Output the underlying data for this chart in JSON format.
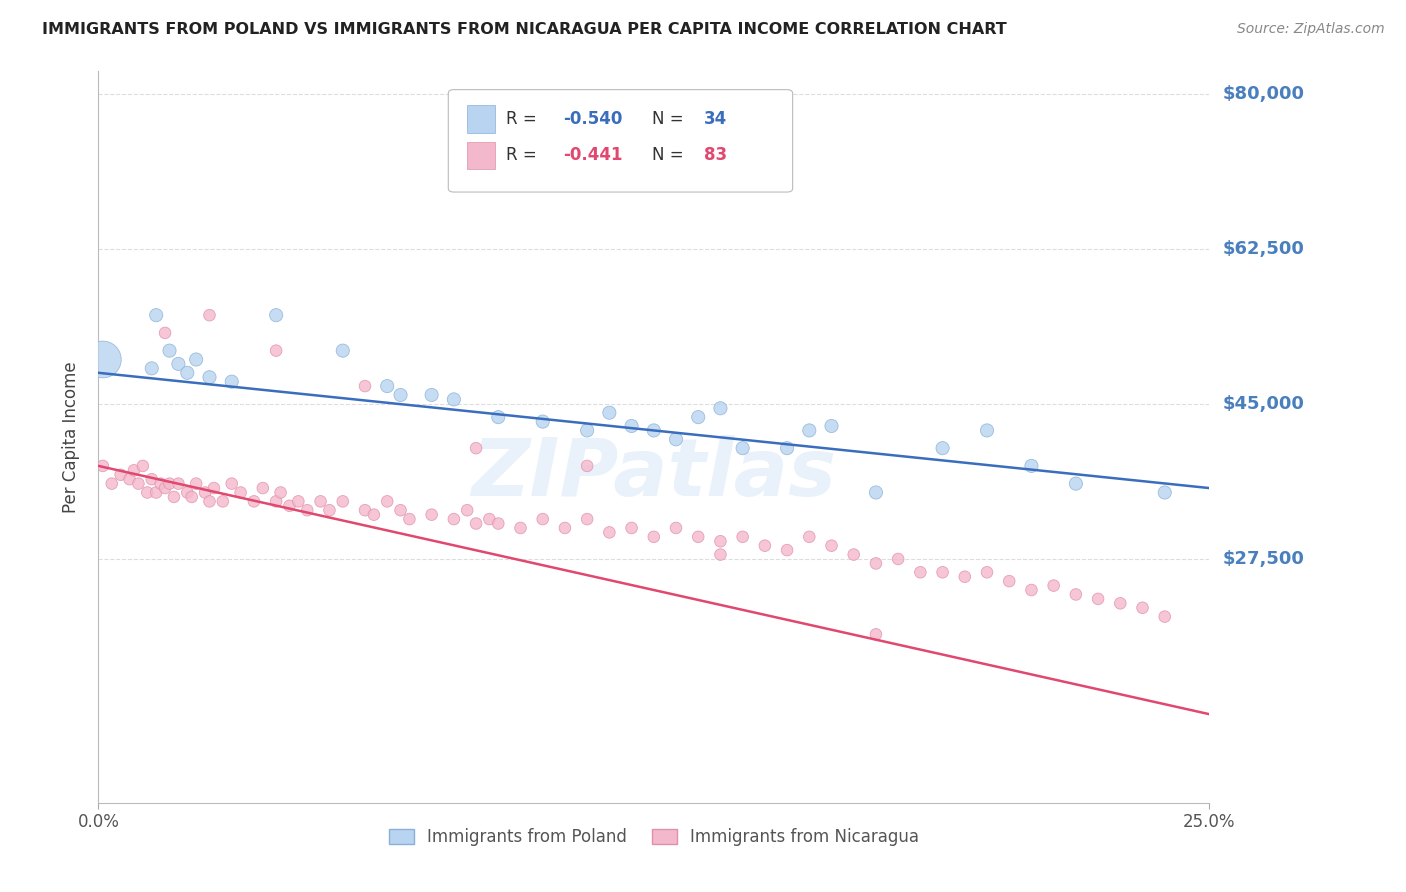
{
  "title": "IMMIGRANTS FROM POLAND VS IMMIGRANTS FROM NICARAGUA PER CAPITA INCOME CORRELATION CHART",
  "source": "Source: ZipAtlas.com",
  "ylabel": "Per Capita Income",
  "ytick_labels": [
    "$80,000",
    "$62,500",
    "$45,000",
    "$27,500"
  ],
  "ytick_values": [
    80000,
    62500,
    45000,
    27500
  ],
  "ymin": 0,
  "ymax": 82500,
  "xmin": 0.0,
  "xmax": 0.25,
  "poland_color": "#b8d4f0",
  "poland_edge": "#8ab0d8",
  "nicaragua_color": "#f4b8cc",
  "nicaragua_edge": "#e090a8",
  "poland_line_color": "#3a6ebd",
  "nicaragua_line_color": "#e04870",
  "background_color": "#ffffff",
  "grid_color": "#dddddd",
  "title_color": "#222222",
  "ytick_color": "#4a7fbd",
  "watermark": "ZIPatlas",
  "poland_R": -0.54,
  "poland_N": 34,
  "nicaragua_R": -0.441,
  "nicaragua_N": 83,
  "poland_scatter_x": [
    0.001,
    0.012,
    0.013,
    0.016,
    0.018,
    0.02,
    0.022,
    0.025,
    0.03,
    0.04,
    0.055,
    0.065,
    0.068,
    0.075,
    0.08,
    0.09,
    0.1,
    0.11,
    0.115,
    0.12,
    0.125,
    0.13,
    0.135,
    0.14,
    0.145,
    0.155,
    0.16,
    0.165,
    0.175,
    0.19,
    0.2,
    0.21,
    0.22,
    0.24
  ],
  "poland_scatter_y": [
    50000,
    49000,
    55000,
    51000,
    49500,
    48500,
    50000,
    48000,
    47500,
    55000,
    51000,
    47000,
    46000,
    46000,
    45500,
    43500,
    43000,
    42000,
    44000,
    42500,
    42000,
    41000,
    43500,
    44500,
    40000,
    40000,
    42000,
    42500,
    35000,
    40000,
    42000,
    38000,
    36000,
    35000
  ],
  "poland_big_idx": 0,
  "nicaragua_scatter_x": [
    0.001,
    0.003,
    0.005,
    0.007,
    0.008,
    0.009,
    0.01,
    0.011,
    0.012,
    0.013,
    0.014,
    0.015,
    0.016,
    0.017,
    0.018,
    0.02,
    0.021,
    0.022,
    0.024,
    0.025,
    0.026,
    0.028,
    0.03,
    0.032,
    0.035,
    0.037,
    0.04,
    0.041,
    0.043,
    0.045,
    0.047,
    0.05,
    0.052,
    0.055,
    0.06,
    0.062,
    0.065,
    0.068,
    0.07,
    0.075,
    0.08,
    0.083,
    0.085,
    0.088,
    0.09,
    0.095,
    0.1,
    0.105,
    0.11,
    0.115,
    0.12,
    0.125,
    0.13,
    0.135,
    0.14,
    0.145,
    0.15,
    0.155,
    0.16,
    0.165,
    0.17,
    0.175,
    0.18,
    0.185,
    0.19,
    0.195,
    0.2,
    0.205,
    0.21,
    0.215,
    0.22,
    0.225,
    0.23,
    0.235,
    0.24,
    0.015,
    0.025,
    0.04,
    0.06,
    0.085,
    0.11,
    0.14,
    0.175
  ],
  "nicaragua_scatter_y": [
    38000,
    36000,
    37000,
    36500,
    37500,
    36000,
    38000,
    35000,
    36500,
    35000,
    36000,
    35500,
    36000,
    34500,
    36000,
    35000,
    34500,
    36000,
    35000,
    34000,
    35500,
    34000,
    36000,
    35000,
    34000,
    35500,
    34000,
    35000,
    33500,
    34000,
    33000,
    34000,
    33000,
    34000,
    33000,
    32500,
    34000,
    33000,
    32000,
    32500,
    32000,
    33000,
    31500,
    32000,
    31500,
    31000,
    32000,
    31000,
    32000,
    30500,
    31000,
    30000,
    31000,
    30000,
    29500,
    30000,
    29000,
    28500,
    30000,
    29000,
    28000,
    27000,
    27500,
    26000,
    26000,
    25500,
    26000,
    25000,
    24000,
    24500,
    23500,
    23000,
    22500,
    22000,
    21000,
    53000,
    55000,
    51000,
    47000,
    40000,
    38000,
    28000,
    19000
  ]
}
